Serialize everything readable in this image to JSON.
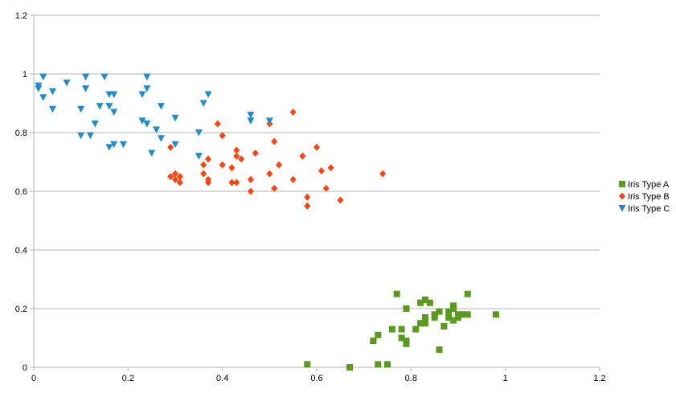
{
  "chart_data": {
    "type": "scatter",
    "xlim": [
      0,
      1.2
    ],
    "ylim": [
      0,
      1.2
    ],
    "x_ticks": [
      "0",
      "0.2",
      "0.4",
      "0.6",
      "0.8",
      "1",
      "1.2"
    ],
    "y_ticks": [
      "0",
      "0.2",
      "0.4",
      "0.6",
      "0.8",
      "1",
      "1.2"
    ],
    "grid": "horizontal",
    "legend_position": "right",
    "series": [
      {
        "name": "Iris Type A",
        "color": "#5a9a1c",
        "marker": "square",
        "points": [
          [
            0.58,
            0.01
          ],
          [
            0.67,
            0.0
          ],
          [
            0.73,
            0.01
          ],
          [
            0.75,
            0.01
          ],
          [
            0.72,
            0.09
          ],
          [
            0.73,
            0.11
          ],
          [
            0.76,
            0.13
          ],
          [
            0.78,
            0.13
          ],
          [
            0.78,
            0.1
          ],
          [
            0.79,
            0.09
          ],
          [
            0.79,
            0.08
          ],
          [
            0.77,
            0.25
          ],
          [
            0.79,
            0.2
          ],
          [
            0.81,
            0.13
          ],
          [
            0.82,
            0.15
          ],
          [
            0.82,
            0.22
          ],
          [
            0.83,
            0.23
          ],
          [
            0.84,
            0.22
          ],
          [
            0.83,
            0.17
          ],
          [
            0.83,
            0.15
          ],
          [
            0.85,
            0.17
          ],
          [
            0.85,
            0.18
          ],
          [
            0.86,
            0.19
          ],
          [
            0.86,
            0.06
          ],
          [
            0.87,
            0.14
          ],
          [
            0.87,
            0.14
          ],
          [
            0.88,
            0.19
          ],
          [
            0.88,
            0.17
          ],
          [
            0.89,
            0.21
          ],
          [
            0.89,
            0.16
          ],
          [
            0.89,
            0.2
          ],
          [
            0.9,
            0.18
          ],
          [
            0.9,
            0.17
          ],
          [
            0.91,
            0.18
          ],
          [
            0.92,
            0.25
          ],
          [
            0.92,
            0.18
          ],
          [
            0.98,
            0.18
          ]
        ]
      },
      {
        "name": "Iris Type B",
        "color": "#ff420e",
        "marker": "diamond",
        "points": [
          [
            0.29,
            0.75
          ],
          [
            0.29,
            0.65
          ],
          [
            0.3,
            0.66
          ],
          [
            0.3,
            0.64
          ],
          [
            0.31,
            0.65
          ],
          [
            0.31,
            0.63
          ],
          [
            0.36,
            0.69
          ],
          [
            0.36,
            0.66
          ],
          [
            0.37,
            0.71
          ],
          [
            0.37,
            0.64
          ],
          [
            0.37,
            0.63
          ],
          [
            0.39,
            0.83
          ],
          [
            0.4,
            0.79
          ],
          [
            0.4,
            0.69
          ],
          [
            0.42,
            0.68
          ],
          [
            0.42,
            0.63
          ],
          [
            0.43,
            0.74
          ],
          [
            0.43,
            0.72
          ],
          [
            0.43,
            0.63
          ],
          [
            0.44,
            0.71
          ],
          [
            0.46,
            0.64
          ],
          [
            0.46,
            0.6
          ],
          [
            0.47,
            0.73
          ],
          [
            0.5,
            0.83
          ],
          [
            0.5,
            0.66
          ],
          [
            0.51,
            0.77
          ],
          [
            0.51,
            0.61
          ],
          [
            0.52,
            0.69
          ],
          [
            0.55,
            0.87
          ],
          [
            0.55,
            0.64
          ],
          [
            0.57,
            0.72
          ],
          [
            0.58,
            0.58
          ],
          [
            0.58,
            0.55
          ],
          [
            0.6,
            0.75
          ],
          [
            0.61,
            0.67
          ],
          [
            0.62,
            0.61
          ],
          [
            0.63,
            0.68
          ],
          [
            0.65,
            0.57
          ],
          [
            0.74,
            0.66
          ]
        ]
      },
      {
        "name": "Iris Type C",
        "color": "#1f8cd0",
        "marker": "triangle-down",
        "points": [
          [
            0.01,
            0.96
          ],
          [
            0.01,
            0.95
          ],
          [
            0.02,
            0.99
          ],
          [
            0.02,
            0.92
          ],
          [
            0.04,
            0.94
          ],
          [
            0.04,
            0.88
          ],
          [
            0.07,
            0.97
          ],
          [
            0.1,
            0.88
          ],
          [
            0.1,
            0.79
          ],
          [
            0.11,
            0.99
          ],
          [
            0.11,
            0.95
          ],
          [
            0.12,
            0.79
          ],
          [
            0.13,
            0.83
          ],
          [
            0.14,
            0.89
          ],
          [
            0.15,
            0.99
          ],
          [
            0.16,
            0.93
          ],
          [
            0.16,
            0.89
          ],
          [
            0.16,
            0.75
          ],
          [
            0.17,
            0.93
          ],
          [
            0.17,
            0.87
          ],
          [
            0.17,
            0.76
          ],
          [
            0.19,
            0.76
          ],
          [
            0.23,
            0.93
          ],
          [
            0.23,
            0.84
          ],
          [
            0.24,
            0.99
          ],
          [
            0.24,
            0.95
          ],
          [
            0.24,
            0.83
          ],
          [
            0.25,
            0.73
          ],
          [
            0.26,
            0.81
          ],
          [
            0.27,
            0.89
          ],
          [
            0.27,
            0.78
          ],
          [
            0.3,
            0.85
          ],
          [
            0.3,
            0.76
          ],
          [
            0.35,
            0.8
          ],
          [
            0.35,
            0.72
          ],
          [
            0.36,
            0.9
          ],
          [
            0.37,
            0.93
          ],
          [
            0.46,
            0.86
          ],
          [
            0.46,
            0.84
          ],
          [
            0.5,
            0.84
          ]
        ]
      }
    ]
  }
}
